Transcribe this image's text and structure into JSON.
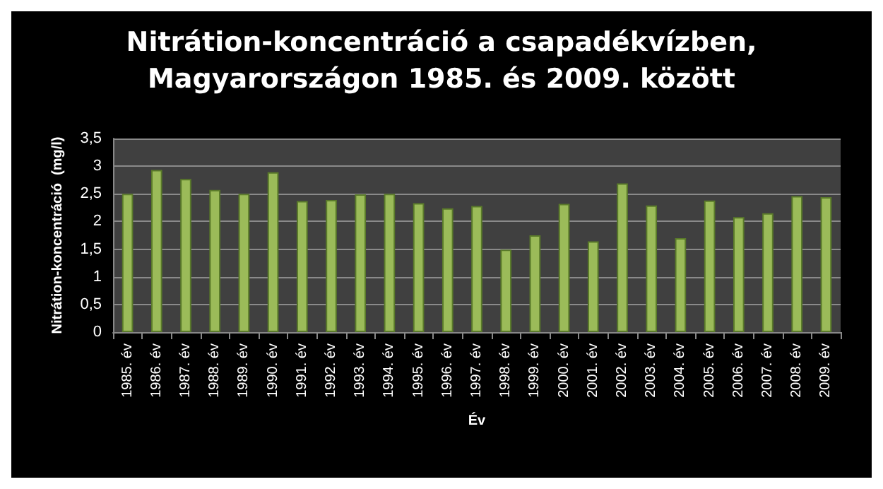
{
  "chart_data": {
    "type": "bar",
    "title": "Nitrátion-koncentráció a csapadékvízben,\nMagyarországon 1985. és 2009. között",
    "xlabel": "Év",
    "ylabel": "Nitrátion-koncentráció  (mg/l)",
    "categories": [
      "1985. év",
      "1986. év",
      "1987. év",
      "1988. év",
      "1989. év",
      "1990. év",
      "1991. év",
      "1992. év",
      "1993. év",
      "1994. év",
      "1995. év",
      "1996. év",
      "1997. év",
      "1998. év",
      "1999. év",
      "2000. év",
      "2001. év",
      "2002. év",
      "2003. év",
      "2004. év",
      "2005. év",
      "2006. év",
      "2007. év",
      "2008. év",
      "2009. év"
    ],
    "values": [
      2.5,
      2.93,
      2.77,
      2.57,
      2.5,
      2.89,
      2.37,
      2.39,
      2.49,
      2.5,
      2.33,
      2.24,
      2.28,
      1.49,
      1.75,
      2.32,
      1.64,
      2.69,
      2.29,
      1.7,
      2.38,
      2.08,
      2.15,
      2.46,
      2.44
    ],
    "color": "#9bbb59",
    "ylim": [
      0,
      3.5
    ],
    "yticks": [
      0,
      {
        "value": 0.5,
        "label": "0,5"
      },
      1,
      {
        "value": 1.5,
        "label": "1,5"
      },
      2,
      {
        "value": 2.5,
        "label": "2,5"
      },
      3,
      {
        "value": 3.5,
        "label": "3,5"
      }
    ],
    "grid": "y"
  }
}
